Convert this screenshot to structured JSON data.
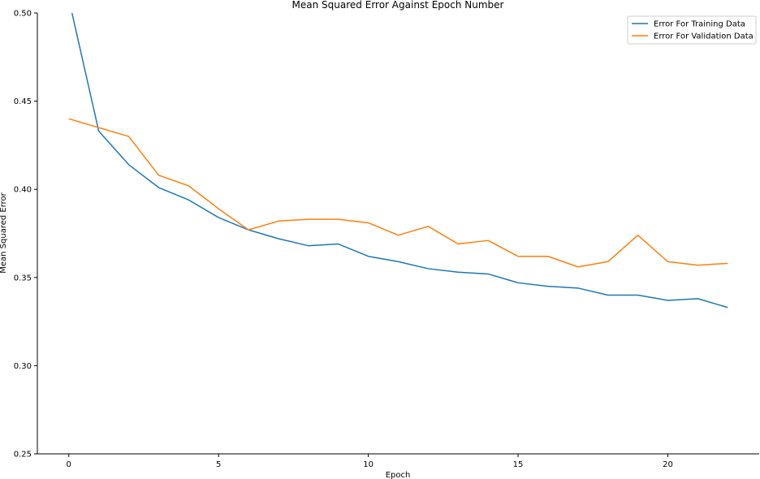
{
  "chart_data": {
    "type": "line",
    "title": "Mean Squared Error Against Epoch Number",
    "xlabel": "Epoch",
    "ylabel": "Mean Squared Error",
    "xlim": [
      -1.05,
      23.05
    ],
    "ylim": [
      0.25,
      0.5
    ],
    "xticks": [
      0,
      5,
      10,
      15,
      20
    ],
    "yticks": [
      0.25,
      0.3,
      0.35,
      0.4,
      0.45,
      0.5
    ],
    "grid": false,
    "legend_position": "top-right",
    "x": [
      0,
      1,
      2,
      3,
      4,
      5,
      6,
      7,
      8,
      9,
      10,
      11,
      12,
      13,
      14,
      15,
      16,
      17,
      18,
      19,
      20,
      21,
      22
    ],
    "series": [
      {
        "name": "Error For Training Data",
        "color": "#1f77b4",
        "values": [
          0.508,
          0.433,
          0.414,
          0.401,
          0.394,
          0.384,
          0.377,
          0.372,
          0.368,
          0.369,
          0.362,
          0.359,
          0.355,
          0.353,
          0.352,
          0.347,
          0.345,
          0.344,
          0.34,
          0.34,
          0.337,
          0.338,
          0.333
        ]
      },
      {
        "name": "Error For Validation Data",
        "color": "#ff7f0e",
        "values": [
          0.44,
          0.435,
          0.43,
          0.408,
          0.402,
          0.389,
          0.377,
          0.382,
          0.383,
          0.383,
          0.381,
          0.374,
          0.379,
          0.369,
          0.371,
          0.362,
          0.362,
          0.356,
          0.359,
          0.374,
          0.359,
          0.357,
          0.358
        ]
      }
    ]
  }
}
